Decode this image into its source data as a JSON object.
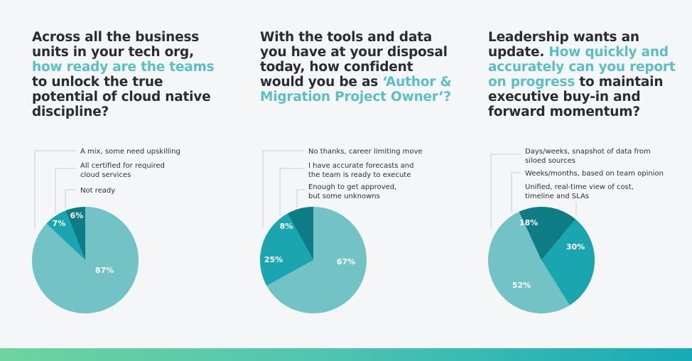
{
  "chart_data": [
    {
      "type": "pie",
      "question": {
        "before": "Across all the business units in your tech org, ",
        "highlight": "how ready are the teams",
        "after": " to unlock the true potential of cloud native discipline?"
      },
      "slices": [
        {
          "label": "A mix, some need upskilling",
          "value": 87,
          "pct_text": "87%",
          "color": "#72c2c6"
        },
        {
          "label": "All certified for required cloud services",
          "value": 7,
          "pct_text": "7%",
          "color": "#1aa5b1"
        },
        {
          "label": "Not ready",
          "value": 6,
          "pct_text": "6%",
          "color": "#0e7c85"
        }
      ]
    },
    {
      "type": "pie",
      "question": {
        "before": "With the tools and data you have at your disposal today, how confident would you be as ",
        "highlight": "‘Author & Migration Project Owner’?",
        "after": ""
      },
      "slices": [
        {
          "label": "Enough to get approved, but some unknowns",
          "value": 67,
          "pct_text": "67%",
          "color": "#72c2c6"
        },
        {
          "label": "I have accurate forecasts and the team is ready to execute",
          "value": 25,
          "pct_text": "25%",
          "color": "#1aa5b1"
        },
        {
          "label": "No thanks, career limiting move",
          "value": 8,
          "pct_text": "8%",
          "color": "#0e7c85"
        }
      ]
    },
    {
      "type": "pie",
      "question": {
        "before": "Leadership wants an update. ",
        "highlight": "How quickly and accurately can you report on progress",
        "after": " to maintain executive buy-in and forward momentum?"
      },
      "slices": [
        {
          "label": "Unified, real-time view of cost, timeline and SLAs",
          "value": 30,
          "pct_text": "30%",
          "color": "#1aa5b1"
        },
        {
          "label": "Days/weeks, snapshot of data from siloed sources",
          "value": 52,
          "pct_text": "52%",
          "color": "#72c2c6"
        },
        {
          "label": "Weeks/months, based on team opinion",
          "value": 18,
          "pct_text": "18%",
          "color": "#0e7c85"
        }
      ]
    }
  ]
}
